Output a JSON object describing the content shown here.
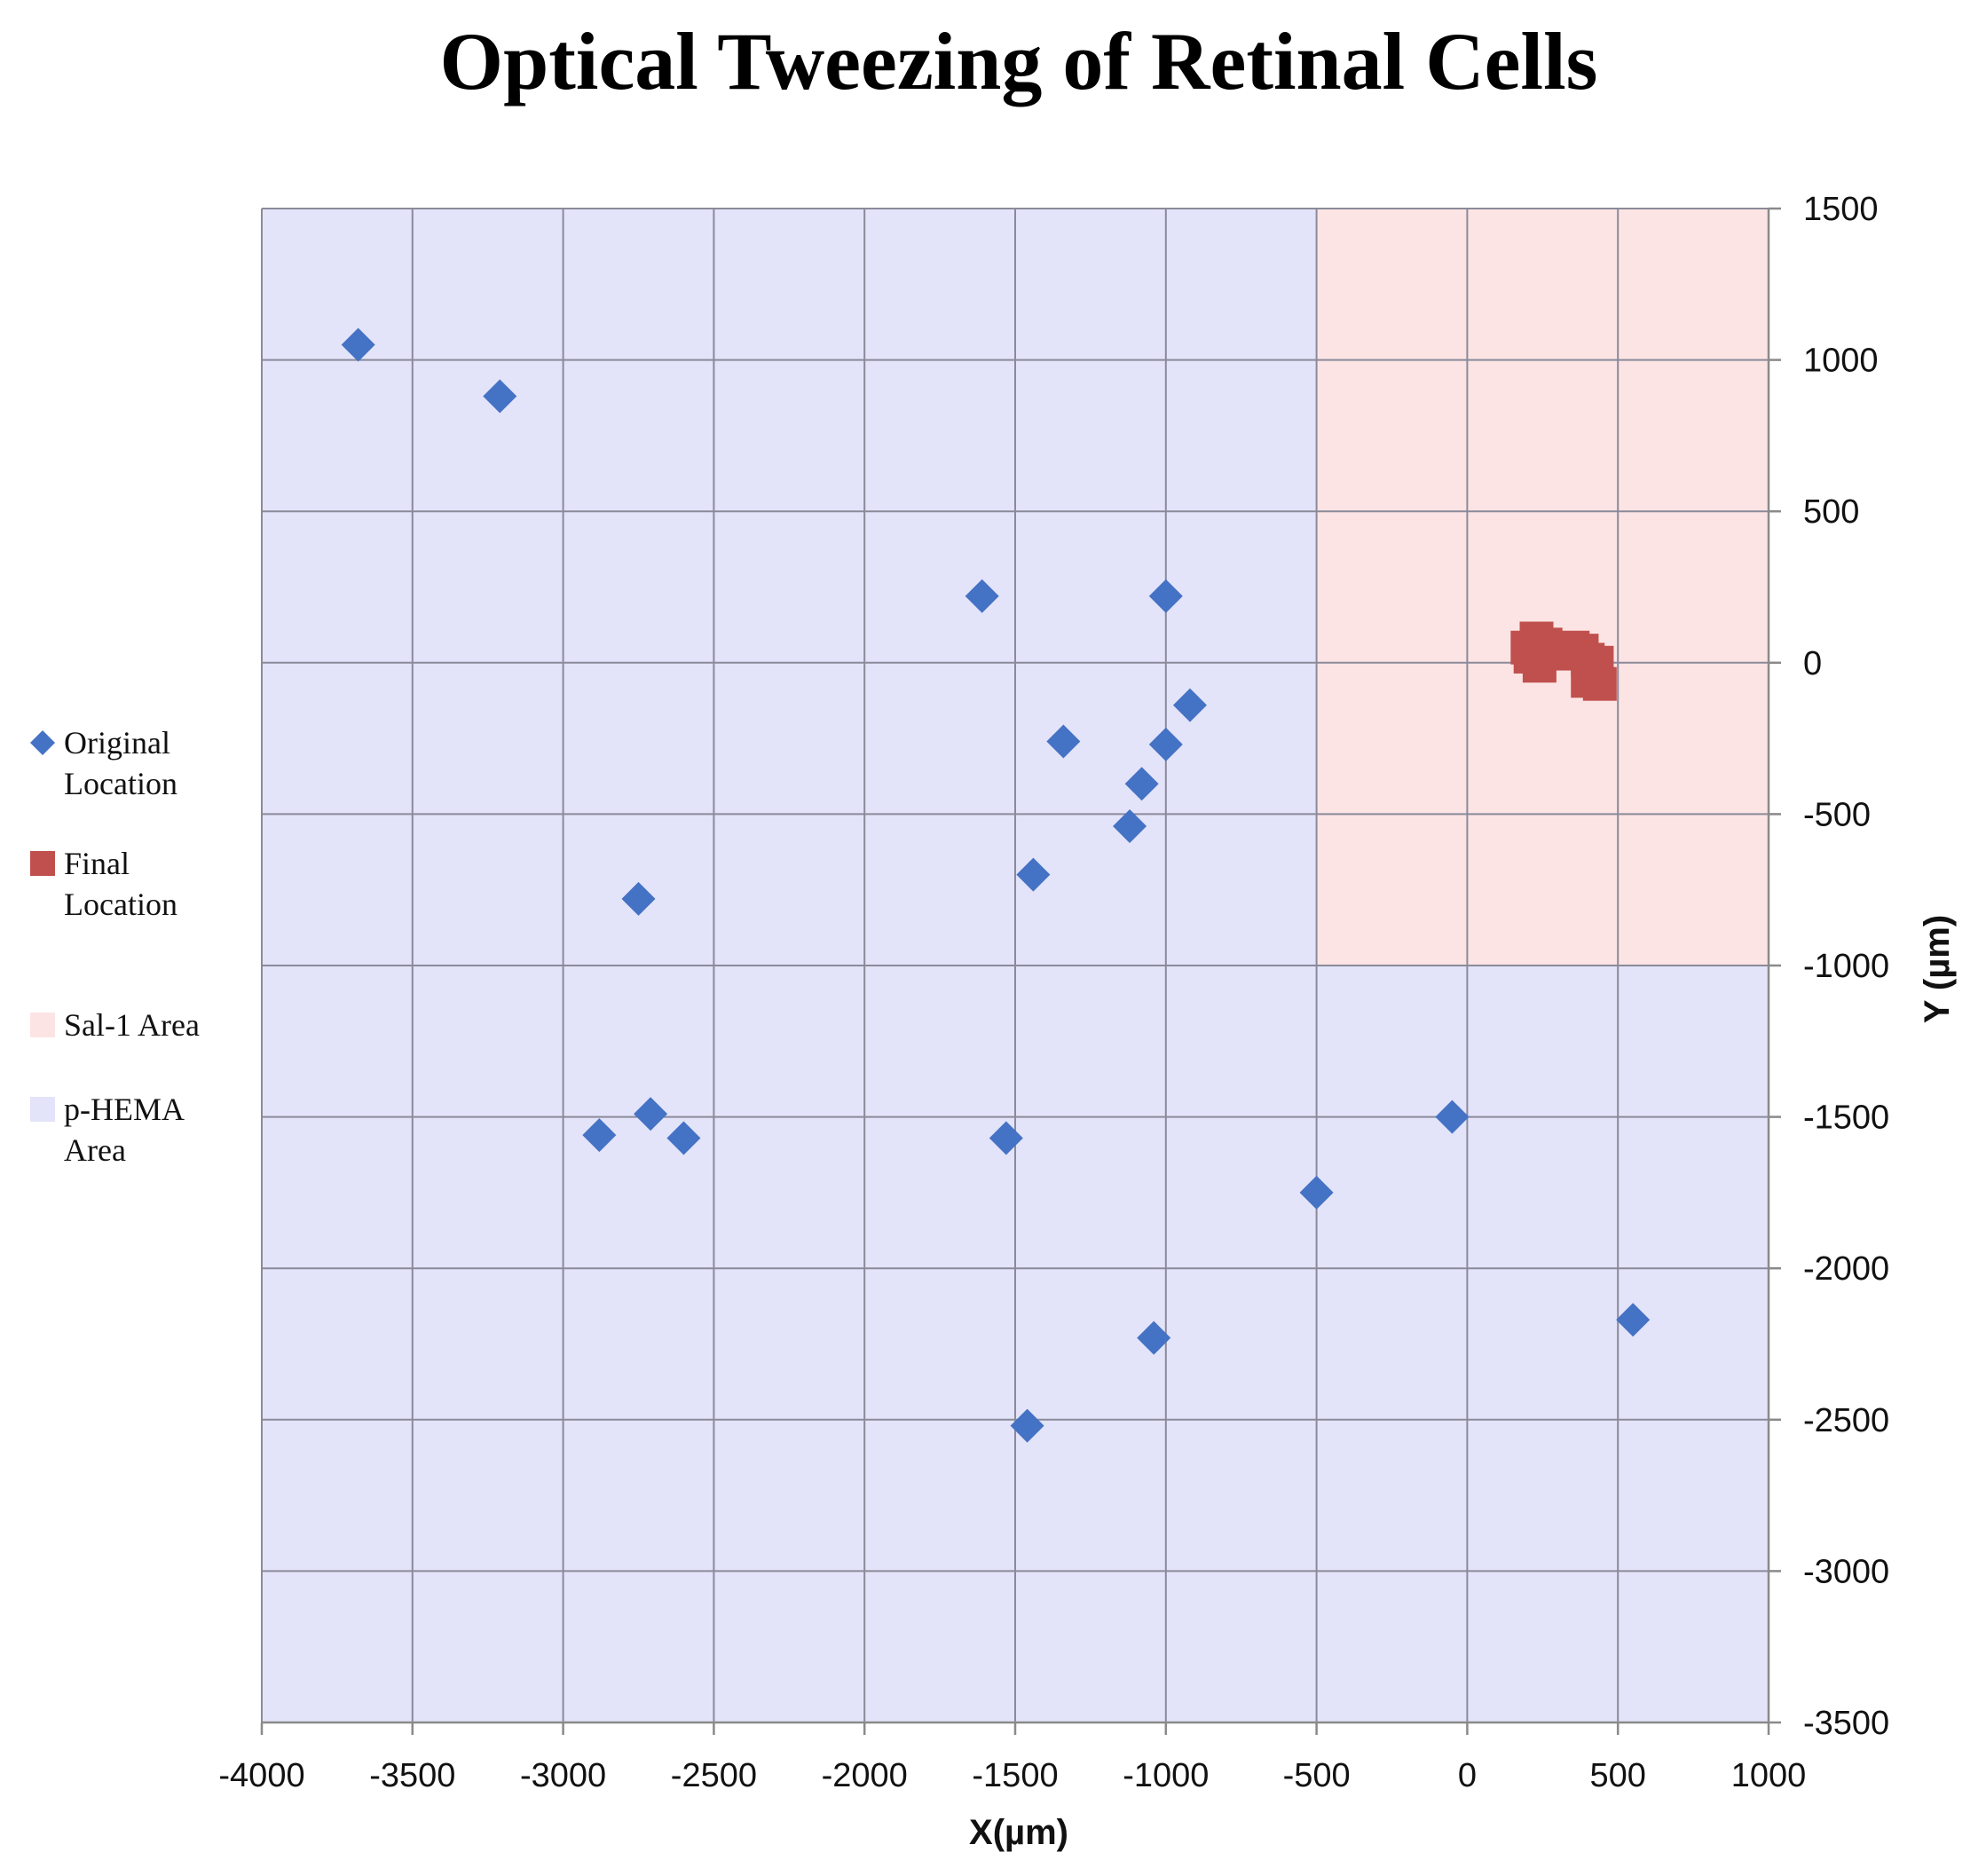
{
  "chart_data": {
    "type": "scatter",
    "title": "Optical Tweezing of Retinal Cells",
    "xlabel": "X(µm)",
    "ylabel": "Y (µm)",
    "xlim": [
      -4000,
      1000
    ],
    "ylim": [
      -3500,
      1500
    ],
    "x_ticks": [
      -4000,
      -3500,
      -3000,
      -2500,
      -2000,
      -1500,
      -1000,
      -500,
      0,
      500,
      1000
    ],
    "y_ticks": [
      1500,
      1000,
      500,
      0,
      -500,
      -1000,
      -1500,
      -2000,
      -2500,
      -3000,
      -3500
    ],
    "y_axis_position": "right",
    "grid": true,
    "legend_position": "left",
    "regions": [
      {
        "name": "p-HEMA Area",
        "label": "p-HEMA Area",
        "color": "#e3e3fa",
        "x_range": [
          -4000,
          1000
        ],
        "y_range": [
          -3500,
          1500
        ]
      },
      {
        "name": "Sal-1 Area",
        "label": "Sal-1 Area",
        "color": "#fce4e4",
        "x_range": [
          -500,
          1000
        ],
        "y_range": [
          -1000,
          1500
        ]
      }
    ],
    "series": [
      {
        "name": "Original Location",
        "marker": "diamond",
        "color": "#4472c4",
        "points": [
          {
            "x": -3680,
            "y": 1050
          },
          {
            "x": -3210,
            "y": 880
          },
          {
            "x": -1610,
            "y": 220
          },
          {
            "x": -1000,
            "y": 220
          },
          {
            "x": -920,
            "y": -140
          },
          {
            "x": -1340,
            "y": -260
          },
          {
            "x": -1000,
            "y": -270
          },
          {
            "x": -1080,
            "y": -400
          },
          {
            "x": -1120,
            "y": -540
          },
          {
            "x": -1440,
            "y": -700
          },
          {
            "x": -2750,
            "y": -780
          },
          {
            "x": -2710,
            "y": -1490
          },
          {
            "x": -2880,
            "y": -1560
          },
          {
            "x": -2600,
            "y": -1570
          },
          {
            "x": -1530,
            "y": -1570
          },
          {
            "x": -50,
            "y": -1500
          },
          {
            "x": -500,
            "y": -1750
          },
          {
            "x": -1040,
            "y": -2230
          },
          {
            "x": 550,
            "y": -2170
          },
          {
            "x": -1460,
            "y": -2520
          }
        ]
      },
      {
        "name": "Final Location",
        "marker": "square",
        "color": "#c0504d",
        "points": [
          {
            "x": 200,
            "y": 50
          },
          {
            "x": 230,
            "y": 80
          },
          {
            "x": 260,
            "y": 60
          },
          {
            "x": 210,
            "y": 20
          },
          {
            "x": 240,
            "y": -10
          },
          {
            "x": 280,
            "y": 40
          },
          {
            "x": 320,
            "y": 30
          },
          {
            "x": 350,
            "y": 50
          },
          {
            "x": 380,
            "y": 40
          },
          {
            "x": 400,
            "y": 10
          },
          {
            "x": 430,
            "y": 0
          },
          {
            "x": 400,
            "y": -60
          },
          {
            "x": 440,
            "y": -70
          },
          {
            "x": 410,
            "y": -40
          }
        ]
      }
    ],
    "legend": [
      {
        "label": "Original Location",
        "marker": "diamond",
        "color": "#4472c4"
      },
      {
        "label": "Final Location",
        "marker": "square",
        "color": "#c0504d"
      },
      {
        "label": "Sal-1 Area",
        "marker": "square",
        "color": "#fce4e4"
      },
      {
        "label": "p-HEMA Area",
        "marker": "square",
        "color": "#e3e3fa"
      }
    ]
  }
}
